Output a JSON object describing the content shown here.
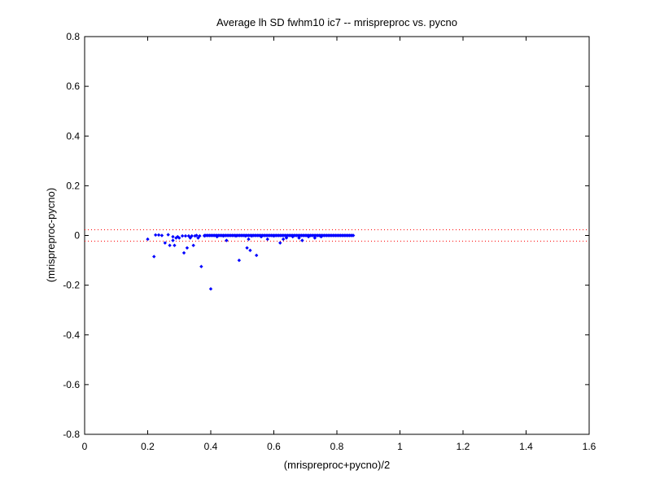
{
  "chart_data": {
    "type": "scatter",
    "title": "Average lh SD fwhm10 ic7 -- mrispreproc vs. pycno",
    "xlabel": "(mrispreproc+pycno)/2",
    "ylabel": "(mrispreproc-pycno)",
    "xlim": [
      0,
      1.6
    ],
    "ylim": [
      -0.8,
      0.8
    ],
    "xticks": [
      "0",
      "0.2",
      "0.4",
      "0.6",
      "0.8",
      "1",
      "1.2",
      "1.4",
      "1.6"
    ],
    "yticks": [
      "-0.8",
      "-0.6",
      "-0.4",
      "-0.2",
      "0",
      "0.2",
      "0.4",
      "0.6",
      "0.8"
    ],
    "grid": false,
    "point_color": "#0000ff",
    "reference_line_color": "#ff0000",
    "reference_lines": [
      0.023,
      -0.023
    ],
    "dense_band": {
      "y": 0.0,
      "x_start": 0.38,
      "x_end": 0.855,
      "step": 0.004
    },
    "points": [
      [
        0.2,
        -0.015
      ],
      [
        0.22,
        -0.085
      ],
      [
        0.225,
        0.002
      ],
      [
        0.235,
        0.002
      ],
      [
        0.245,
        0.0
      ],
      [
        0.255,
        -0.03
      ],
      [
        0.265,
        0.003
      ],
      [
        0.27,
        -0.04
      ],
      [
        0.28,
        -0.005
      ],
      [
        0.28,
        -0.02
      ],
      [
        0.285,
        -0.04
      ],
      [
        0.29,
        -0.01
      ],
      [
        0.295,
        -0.005
      ],
      [
        0.3,
        -0.01
      ],
      [
        0.31,
        -0.002
      ],
      [
        0.315,
        -0.07
      ],
      [
        0.32,
        -0.002
      ],
      [
        0.325,
        -0.05
      ],
      [
        0.33,
        -0.002
      ],
      [
        0.335,
        -0.01
      ],
      [
        0.34,
        -0.002
      ],
      [
        0.345,
        -0.04
      ],
      [
        0.35,
        -0.002
      ],
      [
        0.355,
        0.0
      ],
      [
        0.36,
        -0.01
      ],
      [
        0.365,
        -0.002
      ],
      [
        0.37,
        -0.125
      ],
      [
        0.38,
        -0.002
      ],
      [
        0.4,
        -0.215
      ],
      [
        0.42,
        -0.005
      ],
      [
        0.44,
        -0.002
      ],
      [
        0.45,
        -0.02
      ],
      [
        0.48,
        -0.002
      ],
      [
        0.49,
        -0.1
      ],
      [
        0.51,
        -0.002
      ],
      [
        0.515,
        -0.05
      ],
      [
        0.52,
        -0.015
      ],
      [
        0.525,
        -0.06
      ],
      [
        0.53,
        -0.002
      ],
      [
        0.545,
        -0.08
      ],
      [
        0.56,
        -0.005
      ],
      [
        0.58,
        -0.015
      ],
      [
        0.6,
        -0.002
      ],
      [
        0.62,
        -0.03
      ],
      [
        0.63,
        -0.015
      ],
      [
        0.64,
        -0.01
      ],
      [
        0.66,
        -0.005
      ],
      [
        0.68,
        -0.01
      ],
      [
        0.69,
        -0.02
      ],
      [
        0.71,
        -0.005
      ],
      [
        0.73,
        -0.01
      ],
      [
        0.75,
        -0.005
      ]
    ]
  }
}
